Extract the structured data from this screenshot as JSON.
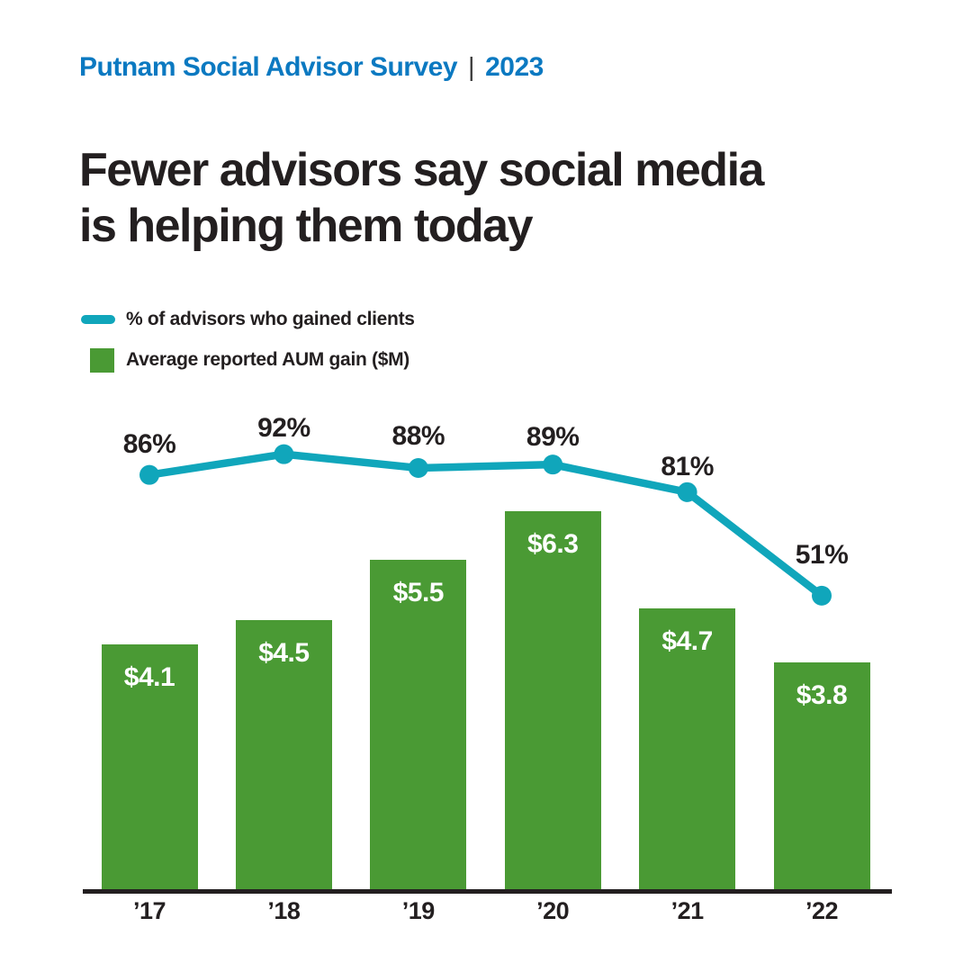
{
  "header": {
    "brand": "Putnam Social Advisor Survey",
    "separator": "|",
    "year": "2023"
  },
  "title": {
    "line1": "Fewer advisors say social media",
    "line2": "is helping them today"
  },
  "colors": {
    "brand_blue": "#0b79c1",
    "teal": "#10a6bb",
    "green": "#4a9a34",
    "ink": "#231f20",
    "bar_label_text": "#ffffff"
  },
  "chart_data": {
    "type": "combo",
    "subtypes": [
      "line",
      "bar"
    ],
    "categories": [
      "’17",
      "’18",
      "’19",
      "’20",
      "’21",
      "’22"
    ],
    "series": [
      {
        "name": "% of advisors who gained clients",
        "type": "line",
        "unit": "%",
        "values": [
          86,
          92,
          88,
          89,
          81,
          51
        ],
        "labels": [
          "86%",
          "92%",
          "88%",
          "89%",
          "81%",
          "51%"
        ],
        "color": "#10a6bb"
      },
      {
        "name": "Average reported AUM gain ($M)",
        "type": "bar",
        "unit": "$M",
        "values": [
          4.1,
          4.5,
          5.5,
          6.3,
          4.7,
          3.8
        ],
        "labels": [
          "$4.1",
          "$4.5",
          "$5.5",
          "$6.3",
          "$4.7",
          "$3.8"
        ],
        "color": "#4a9a34"
      }
    ],
    "legend_position": "top-left",
    "grid": false,
    "y_axis_visible": false,
    "x_axis": {
      "line": true,
      "line_color": "#231f20"
    }
  }
}
